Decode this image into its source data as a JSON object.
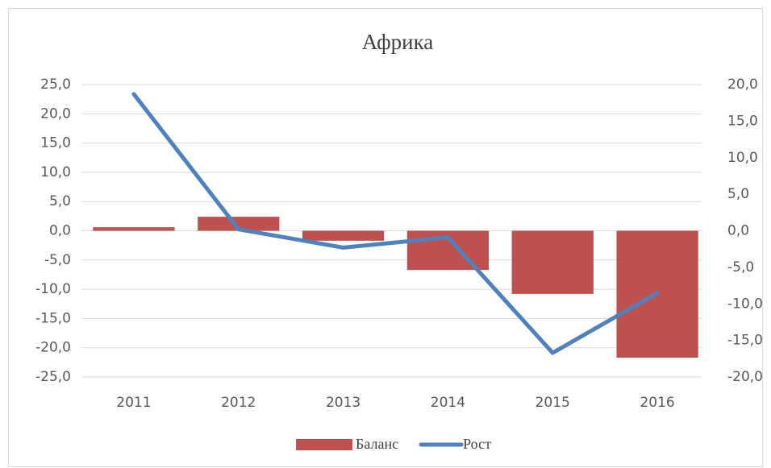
{
  "chart_data": {
    "type": "bar-line",
    "title": "Африка",
    "categories": [
      "2011",
      "2012",
      "2013",
      "2014",
      "2015",
      "2016"
    ],
    "series": [
      {
        "name": "Баланс",
        "color": "#c0504d",
        "type": "bar",
        "values": [
          0.6,
          2.4,
          -1.7,
          -6.7,
          -10.8,
          -21.7
        ]
      },
      {
        "name": "Рост",
        "color": "#4f81bd",
        "type": "line",
        "axis": "y2",
        "values": [
          18.7,
          0.2,
          -2.3,
          -0.9,
          -16.7,
          -8.5
        ]
      }
    ],
    "ylim": [
      -25,
      25
    ],
    "yticks": [
      {
        "value": -25,
        "label": "-25,0"
      },
      {
        "value": -20,
        "label": "-20,0"
      },
      {
        "value": -15,
        "label": "-15,0"
      },
      {
        "value": -10,
        "label": "-10,0"
      },
      {
        "value": -5,
        "label": "-5,0"
      },
      {
        "value": 0,
        "label": "0,0"
      },
      {
        "value": 5,
        "label": "5,0"
      },
      {
        "value": 10,
        "label": "10,0"
      },
      {
        "value": 15,
        "label": "15,0"
      },
      {
        "value": 20,
        "label": "20,0"
      },
      {
        "value": 25,
        "label": "25,0"
      }
    ],
    "y2lim": [
      -20,
      20
    ],
    "y2ticks": [
      {
        "value": -20,
        "label": "-20,0"
      },
      {
        "value": -15,
        "label": "-15,0"
      },
      {
        "value": -10,
        "label": "-10,0"
      },
      {
        "value": -5,
        "label": "-5,0"
      },
      {
        "value": 0,
        "label": "0,0"
      },
      {
        "value": 5,
        "label": "5,0"
      },
      {
        "value": 10,
        "label": "10,0"
      },
      {
        "value": 15,
        "label": "15,0"
      },
      {
        "value": 20,
        "label": "20,0"
      }
    ],
    "grid": true,
    "legend": "bottom"
  }
}
